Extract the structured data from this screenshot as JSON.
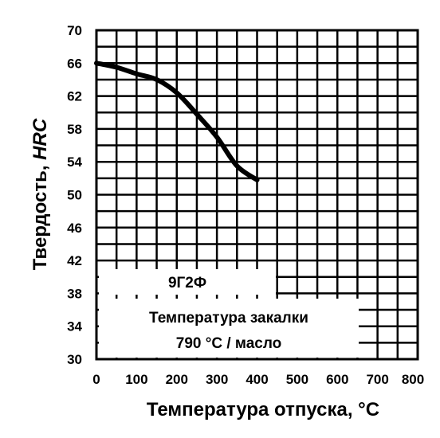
{
  "chart_data": {
    "type": "line",
    "ylabel_prefix": "Твердость, ",
    "ylabel_unit": "HRC",
    "xlabel": "Температура отпуска, °C",
    "xlim": [
      0,
      800
    ],
    "ylim": [
      30,
      70
    ],
    "x_ticks": [
      "0",
      "100",
      "200",
      "300",
      "400",
      "500",
      "600",
      "700",
      "800"
    ],
    "y_ticks": [
      "70",
      "66",
      "62",
      "58",
      "54",
      "50",
      "46",
      "42",
      "38",
      "34",
      "30"
    ],
    "grid": true,
    "series": [
      {
        "x": [
          0,
          50,
          100,
          150,
          200,
          250,
          300,
          350,
          400
        ],
        "values": [
          66,
          65.5,
          64.7,
          64,
          62.4,
          59.8,
          57,
          53.5,
          51.8
        ]
      }
    ],
    "annotations": {
      "steel_grade": "9Г2Ф",
      "quench_line1": "Температура закалки",
      "quench_line2": "790 °C / масло"
    }
  }
}
